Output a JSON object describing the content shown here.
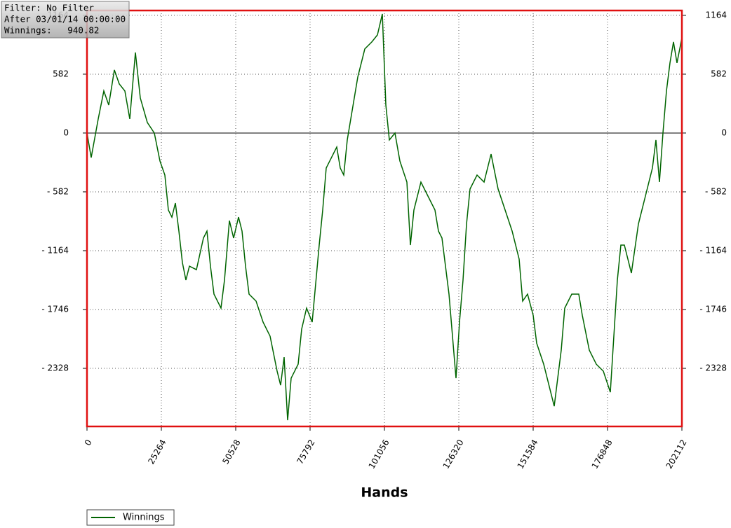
{
  "chart_data": {
    "type": "line",
    "annotations": [
      "Filter: No Filter",
      "After 03/01/14 00:00:00",
      "Winnings:   940.82"
    ],
    "x_label": "Hands",
    "x": [
      0,
      1430,
      3813,
      5720,
      7389,
      9295,
      10964,
      12870,
      14539,
      16446,
      18114,
      20498,
      22881,
      24788,
      26456,
      27648,
      28840,
      30031,
      31223,
      32415,
      33607,
      34798,
      37182,
      39565,
      40757,
      41948,
      43140,
      45524,
      46715,
      48384,
      49814,
      51482,
      52674,
      53865,
      55057,
      57441,
      59823,
      62207,
      64590,
      65782,
      66973,
      68165,
      69357,
      71740,
      72932,
      74600,
      76507,
      78890,
      80082,
      81273,
      82465,
      84848,
      86040,
      87232,
      88423,
      89615,
      91998,
      94383,
      96766,
      98673,
      100341,
      101533,
      102725,
      104631,
      106300,
      108683,
      109875,
      111066,
      113450,
      115833,
      118217,
      119409,
      120600,
      122983,
      124175,
      125367,
      126559,
      127750,
      128941,
      130134,
      132517,
      134900,
      137284,
      139667,
      142051,
      144434,
      146817,
      148009,
      149677,
      151584,
      152776,
      155159,
      157543,
      158734,
      161118,
      162310,
      164693,
      167076,
      168268,
      170652,
      173035,
      175418,
      177802,
      180185,
      181377,
      182569,
      183760,
      184952,
      187335,
      188527,
      189719,
      192102,
      193294,
      194486,
      195677,
      196869,
      198061,
      199252,
      200444,
      202112
    ],
    "series": [
      {
        "name": "Winnings",
        "color": "#006400",
        "values": [
          0,
          -243,
          139,
          416,
          277,
          624,
          485,
          416,
          139,
          797,
          347,
          104,
          0,
          -277,
          -416,
          -762,
          -832,
          -693,
          -970,
          -1282,
          -1455,
          -1317,
          -1352,
          -1039,
          -970,
          -1317,
          -1594,
          -1732,
          -1455,
          -866,
          -1039,
          -832,
          -970,
          -1317,
          -1594,
          -1663,
          -1871,
          -2010,
          -2356,
          -2495,
          -2218,
          -2841,
          -2426,
          -2287,
          -1940,
          -1732,
          -1871,
          -1109,
          -762,
          -346,
          -277,
          -139,
          -346,
          -416,
          -69,
          139,
          554,
          832,
          901,
          970,
          1178,
          277,
          -69,
          0,
          -277,
          -485,
          -1109,
          -762,
          -485,
          -624,
          -762,
          -970,
          -1039,
          -1594,
          -2010,
          -2426,
          -1871,
          -1455,
          -901,
          -554,
          -416,
          -485,
          -208,
          -554,
          -762,
          -970,
          -1247,
          -1663,
          -1594,
          -1802,
          -2079,
          -2287,
          -2564,
          -2703,
          -2148,
          -1732,
          -1594,
          -1594,
          -1802,
          -2148,
          -2287,
          -2356,
          -2564,
          -1455,
          -1109,
          -1109,
          -1247,
          -1386,
          -901,
          -762,
          -624,
          -346,
          -69,
          -485,
          0,
          416,
          693,
          901,
          693,
          940.82
        ]
      }
    ],
    "xlim": [
      0,
      202112
    ],
    "xticks": [
      0,
      25264,
      50528,
      75792,
      101056,
      126320,
      151584,
      176848,
      202112
    ],
    "ylim": [
      -2903,
      1212
    ],
    "yticks": [
      1164,
      582,
      0,
      {
        "value": -582,
        "label": "- 582"
      },
      {
        "value": -1164,
        "label": "- 1164"
      },
      {
        "value": -1746,
        "label": "- 1746"
      },
      {
        "value": -2328,
        "label": "- 2328"
      }
    ],
    "y2lim": [
      -2903,
      1212
    ],
    "y2ticks": [
      1164,
      582,
      0,
      {
        "value": -582,
        "label": "- 582"
      },
      {
        "value": -1164,
        "label": "- 1164"
      },
      {
        "value": -1746,
        "label": "- 1746"
      },
      {
        "value": -2328,
        "label": "- 2328"
      }
    ],
    "grid": true,
    "legend": "bottom-left",
    "frame_color": "#e01010"
  }
}
